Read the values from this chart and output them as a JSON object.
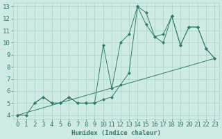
{
  "xlabel": "Humidex (Indice chaleur)",
  "xlim": [
    -0.5,
    23.5
  ],
  "ylim": [
    3.7,
    13.3
  ],
  "xticks": [
    0,
    1,
    2,
    3,
    4,
    5,
    6,
    7,
    8,
    9,
    10,
    11,
    12,
    13,
    14,
    15,
    16,
    17,
    18,
    19,
    20,
    21,
    22,
    23
  ],
  "yticks": [
    4,
    5,
    6,
    7,
    8,
    9,
    10,
    11,
    12,
    13
  ],
  "bg_color": "#cdeae4",
  "grid_color": "#aacfc8",
  "line_color": "#2e7d6e",
  "line1_x": [
    0,
    1,
    2,
    3,
    4,
    5,
    6,
    7,
    8,
    9,
    10,
    11,
    12,
    13,
    14,
    15,
    16,
    17,
    18,
    19,
    20,
    21,
    22,
    23
  ],
  "line1_y": [
    4.0,
    4.0,
    5.0,
    5.5,
    5.0,
    5.0,
    5.5,
    5.0,
    5.0,
    5.0,
    5.3,
    5.5,
    6.5,
    7.5,
    13.0,
    12.5,
    10.5,
    10.7,
    12.2,
    9.8,
    11.3,
    11.3,
    9.5,
    8.7
  ],
  "line2_x": [
    2,
    3,
    4,
    5,
    6,
    7,
    8,
    9,
    10,
    11,
    12,
    13,
    14,
    15,
    16,
    17,
    18,
    19,
    20,
    21,
    22,
    23
  ],
  "line2_y": [
    5.0,
    5.5,
    5.0,
    5.0,
    5.5,
    5.0,
    5.0,
    5.0,
    9.8,
    6.2,
    10.0,
    10.7,
    13.0,
    11.5,
    10.5,
    10.0,
    12.2,
    9.8,
    11.3,
    11.3,
    9.5,
    8.7
  ],
  "line3_x": [
    0,
    23
  ],
  "line3_y": [
    4.0,
    8.7
  ],
  "font_size": 6.5
}
